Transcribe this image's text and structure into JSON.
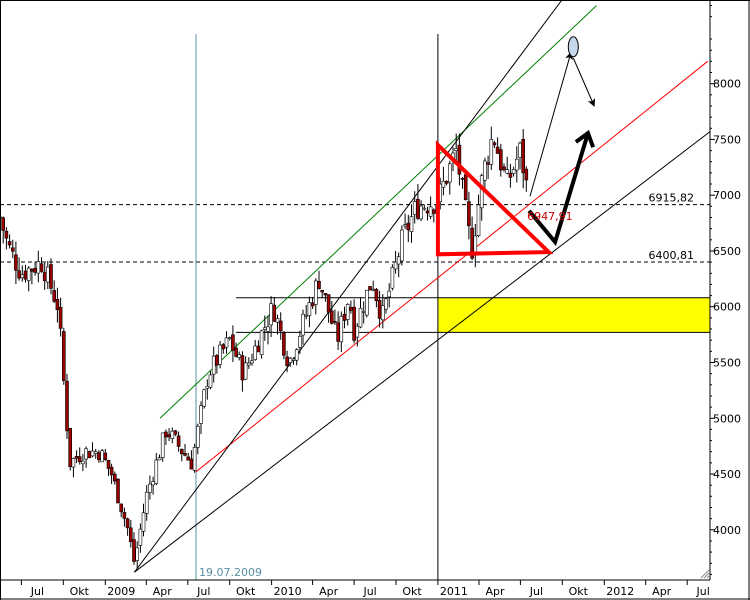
{
  "chart_data": {
    "type": "candlestick",
    "title": "",
    "xlabel": "",
    "ylabel": "",
    "ylim": [
      3550,
      8750
    ],
    "xlim": [
      "2008-05-15",
      "2012-08-20"
    ],
    "y_ticks": [
      4000,
      4500,
      5000,
      5500,
      6000,
      6500,
      7000,
      7500,
      8000
    ],
    "x_ticks": [
      {
        "label": "Jul",
        "date": "2008-07-01"
      },
      {
        "label": "Okt",
        "date": "2008-10-01"
      },
      {
        "label": "2009",
        "date": "2009-01-01"
      },
      {
        "label": "Apr",
        "date": "2009-04-01"
      },
      {
        "label": "Jul",
        "date": "2009-07-01"
      },
      {
        "label": "Okt",
        "date": "2009-10-01"
      },
      {
        "label": "2010",
        "date": "2010-01-01"
      },
      {
        "label": "Apr",
        "date": "2010-04-01"
      },
      {
        "label": "Jul",
        "date": "2010-07-01"
      },
      {
        "label": "Okt",
        "date": "2010-10-01"
      },
      {
        "label": "2011",
        "date": "2011-01-01"
      },
      {
        "label": "Apr",
        "date": "2011-04-01"
      },
      {
        "label": "Jul",
        "date": "2011-07-01"
      },
      {
        "label": "Okt",
        "date": "2011-10-01"
      },
      {
        "label": "2012",
        "date": "2012-01-01"
      },
      {
        "label": "Apr",
        "date": "2012-04-01"
      },
      {
        "label": "Jul",
        "date": "2012-07-01"
      }
    ],
    "price_anchors": [
      {
        "date": "2008-05-15",
        "value": 6800
      },
      {
        "date": "2008-06-01",
        "value": 6550
      },
      {
        "date": "2008-07-01",
        "value": 6300
      },
      {
        "date": "2008-08-15",
        "value": 6400
      },
      {
        "date": "2008-09-20",
        "value": 6000
      },
      {
        "date": "2008-10-15",
        "value": 4600
      },
      {
        "date": "2008-11-15",
        "value": 4700
      },
      {
        "date": "2008-12-20",
        "value": 4700
      },
      {
        "date": "2009-01-15",
        "value": 4500
      },
      {
        "date": "2009-02-20",
        "value": 4000
      },
      {
        "date": "2009-03-06",
        "value": 3700
      },
      {
        "date": "2009-04-01",
        "value": 4300
      },
      {
        "date": "2009-05-15",
        "value": 4900
      },
      {
        "date": "2009-06-20",
        "value": 4700
      },
      {
        "date": "2009-07-10",
        "value": 4600
      },
      {
        "date": "2009-08-15",
        "value": 5400
      },
      {
        "date": "2009-10-01",
        "value": 5700
      },
      {
        "date": "2009-11-01",
        "value": 5400
      },
      {
        "date": "2010-01-05",
        "value": 6000
      },
      {
        "date": "2010-02-08",
        "value": 5500
      },
      {
        "date": "2010-04-15",
        "value": 6250
      },
      {
        "date": "2010-05-25",
        "value": 5700
      },
      {
        "date": "2010-06-20",
        "value": 6100
      },
      {
        "date": "2010-07-01",
        "value": 5800
      },
      {
        "date": "2010-08-10",
        "value": 6250
      },
      {
        "date": "2010-09-01",
        "value": 5900
      },
      {
        "date": "2010-10-15",
        "value": 6600
      },
      {
        "date": "2010-11-15",
        "value": 6900
      },
      {
        "date": "2010-12-31",
        "value": 6950
      },
      {
        "date": "2011-02-10",
        "value": 7400
      },
      {
        "date": "2011-03-16",
        "value": 6500
      },
      {
        "date": "2011-04-10",
        "value": 7200
      },
      {
        "date": "2011-05-02",
        "value": 7550
      },
      {
        "date": "2011-06-01",
        "value": 7100
      },
      {
        "date": "2011-07-01",
        "value": 7400
      },
      {
        "date": "2011-07-20",
        "value": 6950
      }
    ],
    "horizontal_levels": [
      {
        "value": 6915.82,
        "label": "6915,82",
        "style": "dashed"
      },
      {
        "value": 6400.81,
        "label": "6400,81",
        "style": "dashed"
      }
    ],
    "support_zone": {
      "from_date": "2011-01-01",
      "to_date": "2012-08-20",
      "low": 5770,
      "high": 6080,
      "color": "#ffff00"
    },
    "range_lines": [
      {
        "from_date": "2009-10-15",
        "to_date": "2012-08-20",
        "value": 6080
      },
      {
        "from_date": "2009-10-15",
        "to_date": "2012-08-20",
        "value": 5770
      }
    ],
    "vertical_markers": [
      {
        "date": "2009-07-19",
        "label": "19.07.2009",
        "color": "#5b8fa3"
      },
      {
        "date": "2011-01-01",
        "label": "",
        "color": "#000000"
      }
    ],
    "trend_lines": [
      {
        "color": "#008000",
        "from": {
          "date": "2009-05-01",
          "value": 5000
        },
        "to": {
          "date": "2011-12-15",
          "value": 8700
        }
      },
      {
        "color": "#ff0000",
        "from": {
          "date": "2009-07-19",
          "value": 4520
        },
        "to": {
          "date": "2012-08-15",
          "value": 8200
        }
      },
      {
        "color": "#000000",
        "from": {
          "date": "2009-03-06",
          "value": 3620
        },
        "to": {
          "date": "2011-09-30",
          "value": 8750
        }
      },
      {
        "color": "#000000",
        "from": {
          "date": "2009-03-06",
          "value": 3620
        },
        "to": {
          "date": "2012-08-20",
          "value": 7570
        }
      }
    ],
    "triangle": {
      "color": "#ff0000",
      "points": [
        {
          "date": "2011-01-01",
          "value": 7450
        },
        {
          "date": "2011-01-01",
          "value": 6470
        },
        {
          "date": "2011-09-01",
          "value": 6490
        }
      ]
    },
    "annotation_point": {
      "date": "2011-07-20",
      "value": 6947.91,
      "label": "6947,91",
      "color": "#cc0000"
    },
    "forecast_path": {
      "color": "#000000",
      "points": [
        {
          "date": "2011-07-20",
          "value": 6860
        },
        {
          "date": "2011-09-15",
          "value": 6580
        },
        {
          "date": "2011-11-25",
          "value": 7540
        }
      ]
    },
    "scenario_arrows": [
      {
        "from": {
          "date": "2011-07-22",
          "value": 6990
        },
        "to": {
          "date": "2011-10-20",
          "value": 8280
        }
      },
      {
        "from": {
          "date": "2011-10-25",
          "value": 8230
        },
        "to": {
          "date": "2011-12-10",
          "value": 7800
        }
      }
    ],
    "target_marker": {
      "date": "2011-10-25",
      "value": 8330
    }
  }
}
